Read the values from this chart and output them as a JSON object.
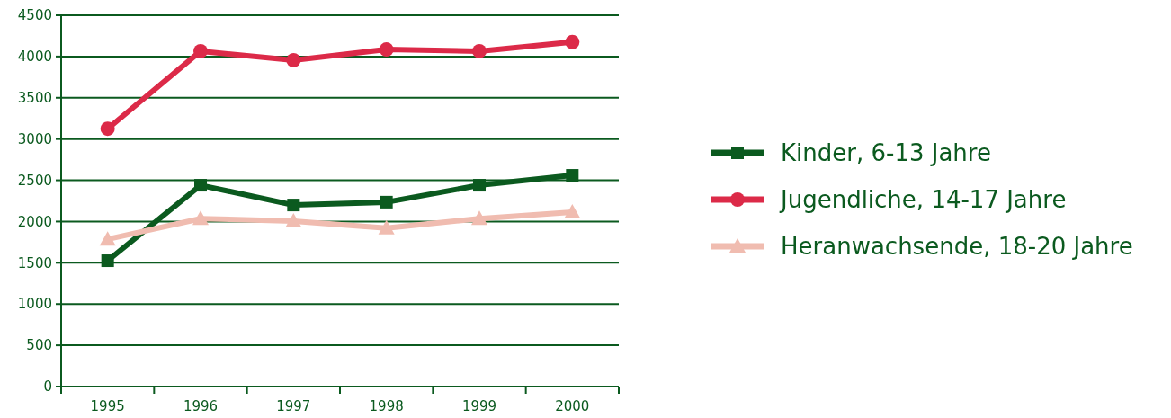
{
  "chart_data": {
    "type": "line",
    "categories": [
      "1995",
      "1996",
      "1997",
      "1998",
      "1999",
      "2000"
    ],
    "series": [
      {
        "name": "Kinder, 6-13 Jahre",
        "color": "#0b5a1f",
        "marker": "square",
        "values": [
          1525,
          2440,
          2200,
          2235,
          2440,
          2560
        ]
      },
      {
        "name": "Jugendliche, 14-17 Jahre",
        "color": "#dc2a48",
        "marker": "circle",
        "values": [
          3125,
          4065,
          3955,
          4085,
          4065,
          4175
        ]
      },
      {
        "name": "Heranwachsende, 18-20 Jahre",
        "color": "#f0bcb0",
        "marker": "triangle",
        "values": [
          1785,
          2035,
          2005,
          1920,
          2035,
          2115
        ]
      }
    ],
    "ylim": [
      0,
      4500
    ],
    "yticks": [
      0,
      500,
      1000,
      1500,
      2000,
      2500,
      3000,
      3500,
      4000,
      4500
    ],
    "grid": "y",
    "legend": "right"
  }
}
